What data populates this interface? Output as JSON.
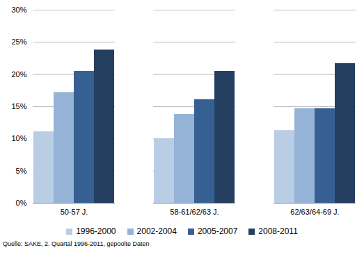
{
  "chart_data": {
    "type": "bar",
    "categories": [
      "50-57 J.",
      "58-61/62/63 J.",
      "62/63/64-69 J."
    ],
    "series": [
      {
        "name": "1996-2000",
        "color": "#b9cde5",
        "values": [
          11.1,
          10.0,
          11.3
        ]
      },
      {
        "name": "2002-2004",
        "color": "#95b3d7",
        "values": [
          17.2,
          13.8,
          14.7
        ]
      },
      {
        "name": "2005-2007",
        "color": "#376092",
        "values": [
          20.5,
          16.1,
          14.7
        ]
      },
      {
        "name": "2008-2011",
        "color": "#243f60",
        "values": [
          23.8,
          20.5,
          21.7
        ]
      }
    ],
    "ylim": [
      0,
      30
    ],
    "yticks": [
      {
        "value": 0,
        "label": "0%"
      },
      {
        "value": 5,
        "label": "5%"
      },
      {
        "value": 10,
        "label": "10%"
      },
      {
        "value": 15,
        "label": "15%"
      },
      {
        "value": 20,
        "label": "20%"
      },
      {
        "value": 25,
        "label": "25%"
      },
      {
        "value": 30,
        "label": "30%"
      }
    ],
    "grid": true,
    "legend": "bottom",
    "caption": "Quelle: SAKE, 2. Quartal 1996-2011, gepoolte Daten"
  }
}
